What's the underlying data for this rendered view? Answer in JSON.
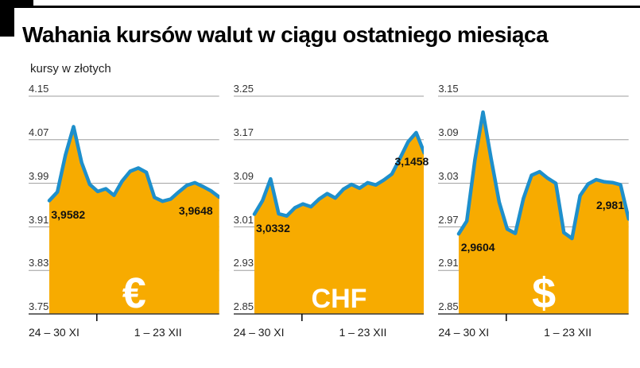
{
  "header": {
    "title": "Wahania kursów walut w ciągu ostatniego miesiąca",
    "subtitle": "kursy w złotych"
  },
  "colors": {
    "area": "#F7AB00",
    "line": "#1E8FCB",
    "grid": "#9E9E9E",
    "axis": "#3A3A3A",
    "tick_mark": "#000000",
    "value_label": "#111111",
    "symbol": "#FFFFFF"
  },
  "chart_data": [
    {
      "id": "eur",
      "type": "area",
      "currency": "EUR",
      "symbol": "€",
      "ylim": [
        3.75,
        4.15
      ],
      "yticks": [
        "4.15",
        "4.07",
        "3.99",
        "3.91",
        "3.83",
        "3.75"
      ],
      "x_labels": [
        "24 – 30 XI",
        "1 – 23 XII"
      ],
      "x_split": 0.28,
      "values": [
        3.9582,
        3.974,
        4.042,
        4.094,
        4.028,
        3.988,
        3.975,
        3.98,
        3.968,
        3.994,
        4.012,
        4.018,
        4.01,
        3.964,
        3.957,
        3.961,
        3.974,
        3.986,
        3.991,
        3.984,
        3.976,
        3.9648
      ],
      "start_label": "3,9582",
      "end_label": "3,9648",
      "end_label_placement": "below"
    },
    {
      "id": "chf",
      "type": "area",
      "currency": "CHF",
      "symbol": "CHF",
      "ylim": [
        2.85,
        3.25
      ],
      "yticks": [
        "3.25",
        "3.17",
        "3.09",
        "3.01",
        "2.93",
        "2.85"
      ],
      "x_labels": [
        "24 – 30 XI",
        "1 – 23 XII"
      ],
      "x_split": 0.28,
      "values": [
        3.0332,
        3.058,
        3.098,
        3.034,
        3.03,
        3.045,
        3.052,
        3.047,
        3.061,
        3.071,
        3.063,
        3.079,
        3.088,
        3.081,
        3.091,
        3.087,
        3.096,
        3.107,
        3.136,
        3.166,
        3.183,
        3.1458
      ],
      "start_label": "3,0332",
      "end_label": "3,1458",
      "end_label_placement": "right"
    },
    {
      "id": "usd",
      "type": "area",
      "currency": "USD",
      "symbol": "$",
      "ylim": [
        2.85,
        3.15
      ],
      "yticks": [
        "3.15",
        "3.09",
        "3.03",
        "2.97",
        "2.91",
        "2.85"
      ],
      "x_labels": [
        "24 – 30 XI",
        "1 – 23 XII"
      ],
      "x_split": 0.28,
      "values": [
        2.9604,
        2.978,
        3.062,
        3.128,
        3.064,
        3.004,
        2.967,
        2.961,
        3.009,
        3.041,
        3.046,
        3.037,
        3.03,
        2.962,
        2.954,
        3.013,
        3.029,
        3.035,
        3.032,
        3.031,
        3.028,
        2.981
      ],
      "start_label": "2,9604",
      "end_label": "2,981",
      "end_label_placement": "above"
    }
  ]
}
